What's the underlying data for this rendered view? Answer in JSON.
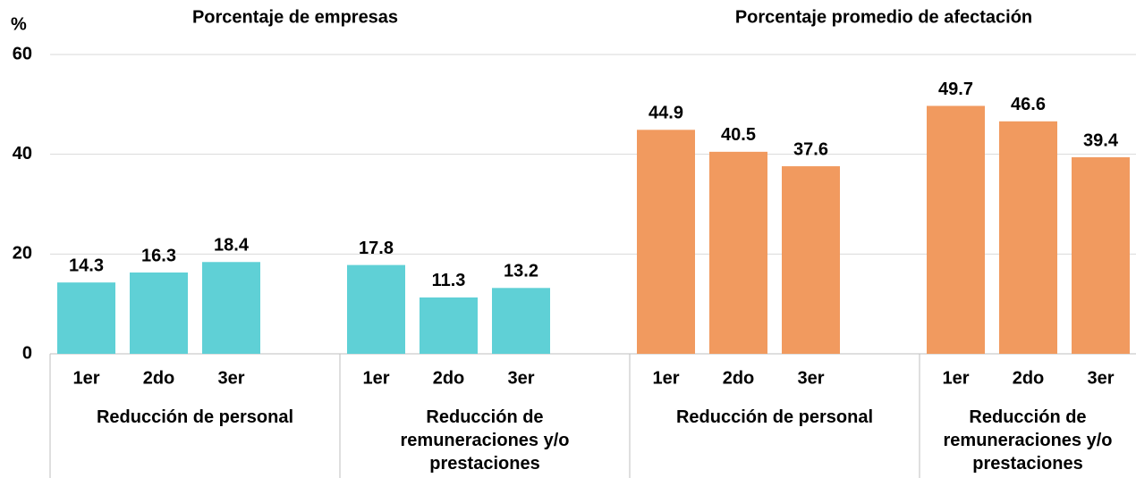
{
  "chart_data": {
    "type": "bar",
    "y_label": "%",
    "ylim": [
      0,
      60
    ],
    "yticks": [
      0,
      20,
      40,
      60
    ],
    "grid": true,
    "sections": [
      {
        "title": "Porcentaje de empresas",
        "color": "#5fd0d6",
        "groups": [
          {
            "name": "Reducción de personal",
            "categories": [
              "1er",
              "2do",
              "3er"
            ],
            "values": [
              14.3,
              16.3,
              18.4
            ]
          },
          {
            "name": "Reducción de remuneraciones y/o prestaciones",
            "categories": [
              "1er",
              "2do",
              "3er"
            ],
            "values": [
              17.8,
              11.3,
              13.2
            ]
          }
        ]
      },
      {
        "title": "Porcentaje promedio de afectación",
        "color": "#f19a5f",
        "groups": [
          {
            "name": "Reducción de personal",
            "categories": [
              "1er",
              "2do",
              "3er"
            ],
            "values": [
              44.9,
              40.5,
              37.6
            ]
          },
          {
            "name": "Reducción de remuneraciones y/o prestaciones",
            "categories": [
              "1er",
              "2do",
              "3er"
            ],
            "values": [
              49.7,
              46.6,
              39.4
            ]
          }
        ]
      }
    ]
  }
}
